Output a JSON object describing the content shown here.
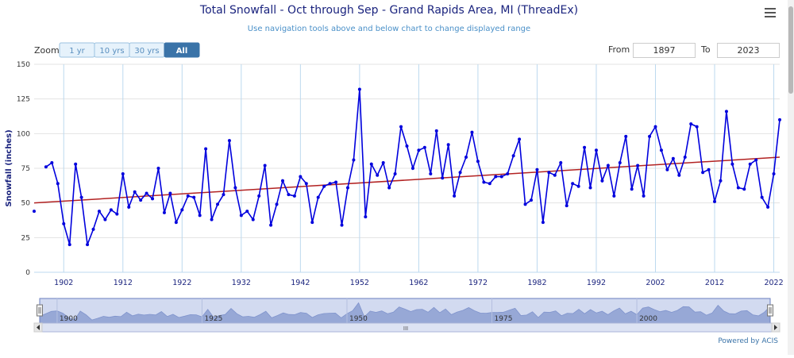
{
  "header": {
    "title": "Total Snowfall - Oct through Sep - Grand Rapids Area, MI (ThreadEx)",
    "subtitle": "Use navigation tools above and below chart to change displayed range",
    "menu_icon": "hamburger-menu-icon"
  },
  "zoom": {
    "label": "Zoom",
    "buttons": [
      "1 yr",
      "10 yrs",
      "30 yrs",
      "All"
    ],
    "selected": "All"
  },
  "range": {
    "from_label": "From",
    "from_value": "1897",
    "to_label": "To",
    "to_value": "2023"
  },
  "navigator": {
    "labels": [
      "1900",
      "1925",
      "1950",
      "1975",
      "2000"
    ],
    "scroll_glyph": "III"
  },
  "credits": "Powered by ACIS",
  "colors": {
    "series": "#0000dd",
    "trend": "#b22222",
    "accent": "#3a73a8",
    "title": "#1a237e",
    "subtitle": "#4a90c8"
  },
  "chart_data": {
    "type": "line",
    "title": "Total Snowfall - Oct through Sep - Grand Rapids Area, MI (ThreadEx)",
    "subtitle": "Use navigation tools above and below chart to change displayed range",
    "xlabel": "",
    "ylabel": "Snowfall (inches)",
    "xlim": [
      1897,
      2023
    ],
    "ylim": [
      0,
      150
    ],
    "x_ticks": [
      1902,
      1912,
      1922,
      1932,
      1942,
      1952,
      1962,
      1972,
      1982,
      1992,
      2002,
      2012,
      2022
    ],
    "y_ticks": [
      0,
      25,
      50,
      75,
      100,
      125,
      150
    ],
    "grid": true,
    "series": [
      {
        "x_start": 1897,
        "values": [
          44,
          null,
          76,
          79,
          64,
          35,
          20,
          78,
          54,
          20,
          31,
          44,
          38,
          45,
          42,
          71,
          47,
          58,
          52,
          57,
          53,
          75,
          43,
          57,
          36,
          45,
          55,
          54,
          41,
          89,
          38,
          49,
          56,
          95,
          61,
          41,
          44,
          38,
          55,
          77,
          34,
          49,
          66,
          56,
          55,
          69,
          64,
          36,
          54,
          62,
          64,
          65,
          34,
          61,
          81,
          132,
          40,
          78,
          70,
          79,
          61,
          71,
          105,
          91,
          75,
          88,
          90,
          71,
          102,
          68,
          92,
          55,
          72,
          83,
          101,
          80,
          65,
          64,
          69,
          69,
          71,
          84,
          96,
          49,
          52,
          74,
          36,
          72,
          70,
          79,
          48,
          64,
          62,
          90,
          61,
          88,
          66,
          77,
          55,
          79,
          98,
          60,
          77,
          55,
          98,
          105,
          88,
          74,
          82,
          70,
          83,
          107,
          105,
          72,
          74,
          51,
          66,
          116,
          78,
          61,
          60,
          78,
          81,
          54,
          47,
          71,
          110
        ]
      },
      {
        "type": "trend",
        "x": [
          1897,
          2023
        ],
        "values": [
          50,
          83
        ]
      }
    ]
  }
}
